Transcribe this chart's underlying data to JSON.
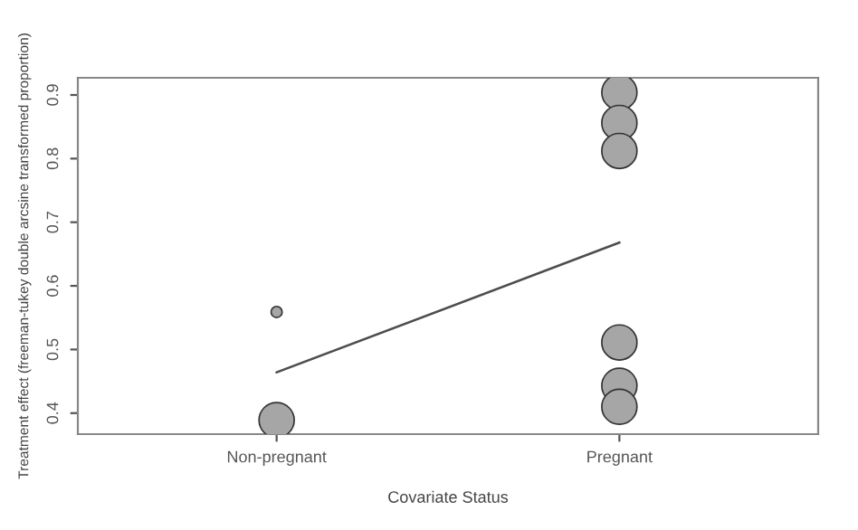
{
  "chart_data": {
    "type": "bubble",
    "xlabel": "Covariate Status",
    "ylabel": "Treatment effect (freeman-tukey double arcsine transformed proportion)",
    "categories": [
      "Non-pregnant",
      "Pregnant"
    ],
    "ylim": [
      0.367,
      0.927
    ],
    "yticks": [
      0.4,
      0.5,
      0.6,
      0.7,
      0.8,
      0.9
    ],
    "grid": false,
    "legend": false,
    "series": [
      {
        "color": "#a6a6a6",
        "x": [
          "Non-pregnant",
          "Non-pregnant",
          "Pregnant",
          "Pregnant",
          "Pregnant",
          "Pregnant",
          "Pregnant",
          "Pregnant"
        ],
        "values": [
          0.559,
          0.389,
          0.904,
          0.856,
          0.812,
          0.511,
          0.443,
          0.41
        ],
        "sizes": [
          0.1,
          1,
          1,
          1,
          1,
          1,
          1,
          1
        ]
      },
      {
        "type": "line",
        "color": "#4d4d4d",
        "x": [
          "Non-pregnant",
          "Pregnant"
        ],
        "values": [
          0.464,
          0.668
        ]
      }
    ]
  }
}
